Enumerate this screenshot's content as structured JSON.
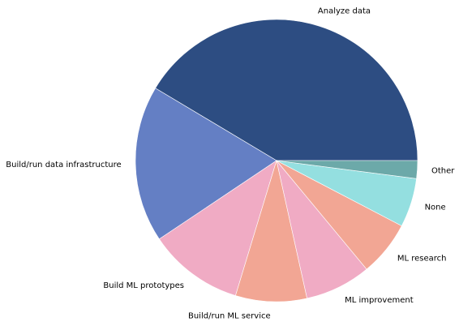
{
  "chart_data": {
    "type": "pie",
    "title": "",
    "labels": [
      "Analyze data",
      "Build/run data infrastructure",
      "Build ML prototypes",
      "Build/run ML service",
      "ML improvement",
      "ML research",
      "None",
      "Other"
    ],
    "values": [
      40.6,
      17.6,
      10.7,
      8.0,
      7.4,
      6.2,
      5.5,
      2.0
    ],
    "colors": [
      "#2d4d82",
      "#647fc4",
      "#f0abc4",
      "#f2a694",
      "#f0abc4",
      "#f2a694",
      "#94dfe0",
      "#6ca9a9"
    ],
    "start_angle_deg": 0,
    "direction": "counterclockwise",
    "legend": "none"
  }
}
